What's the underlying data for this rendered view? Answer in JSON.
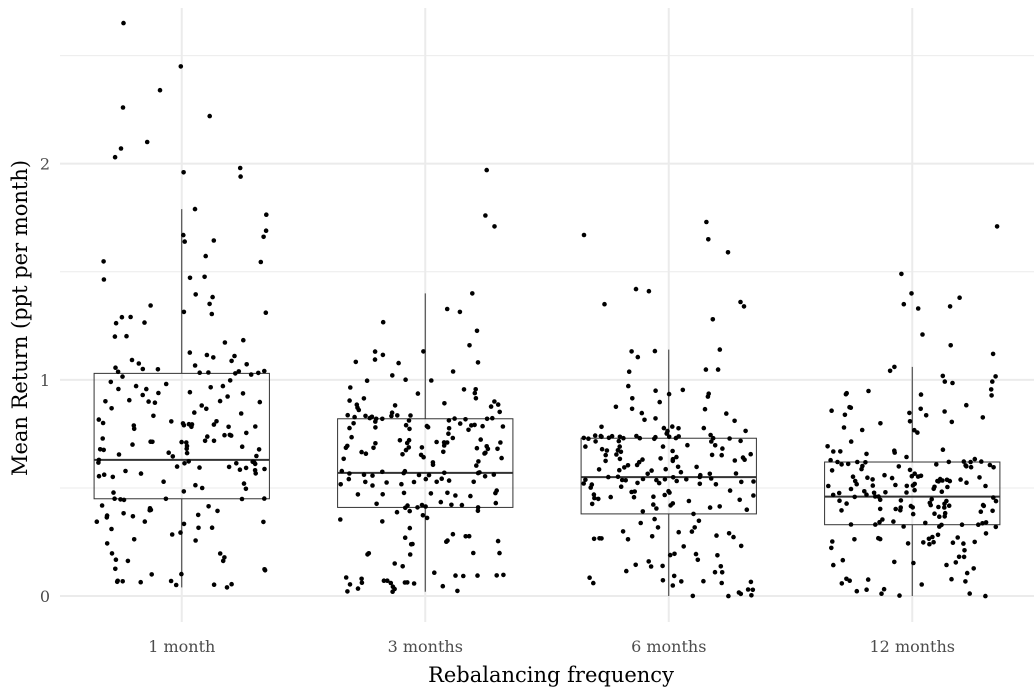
{
  "chart_data": {
    "type": "box",
    "xlabel": "Rebalancing frequency",
    "ylabel": "Mean Return (ppt per month)",
    "categories": [
      "1 month",
      "3 months",
      "6 months",
      "12 months"
    ],
    "y_ticks": [
      "0",
      "1",
      "2"
    ],
    "ylim": [
      -0.12,
      2.72
    ],
    "grid": true,
    "boxes": [
      {
        "q1": 0.45,
        "median": 0.63,
        "q3": 1.03,
        "whisker_low": 0.04,
        "whisker_high": 1.79
      },
      {
        "q1": 0.41,
        "median": 0.57,
        "q3": 0.82,
        "whisker_low": 0.02,
        "whisker_high": 1.4
      },
      {
        "q1": 0.38,
        "median": 0.55,
        "q3": 0.73,
        "whisker_low": 0.0,
        "whisker_high": 1.14
      },
      {
        "q1": 0.33,
        "median": 0.46,
        "q3": 0.62,
        "whisker_low": 0.0,
        "whisker_high": 1.06
      }
    ],
    "outliers": [
      [
        2.65,
        2.45,
        2.34,
        2.26,
        2.22,
        2.1,
        2.07,
        2.03,
        1.98,
        1.96,
        1.94
      ],
      [
        1.97,
        1.76,
        1.71
      ],
      [
        1.73,
        1.67,
        1.65,
        1.59,
        1.42,
        1.41,
        1.36,
        1.35,
        1.34,
        1.28
      ],
      [
        1.71,
        1.49,
        1.4,
        1.38,
        1.35,
        1.34,
        1.33,
        1.21,
        1.16,
        1.12
      ]
    ],
    "points_per_group": 200,
    "colors": {
      "point": "#000000",
      "box": "#333333",
      "grid": "#ebebeb"
    }
  }
}
